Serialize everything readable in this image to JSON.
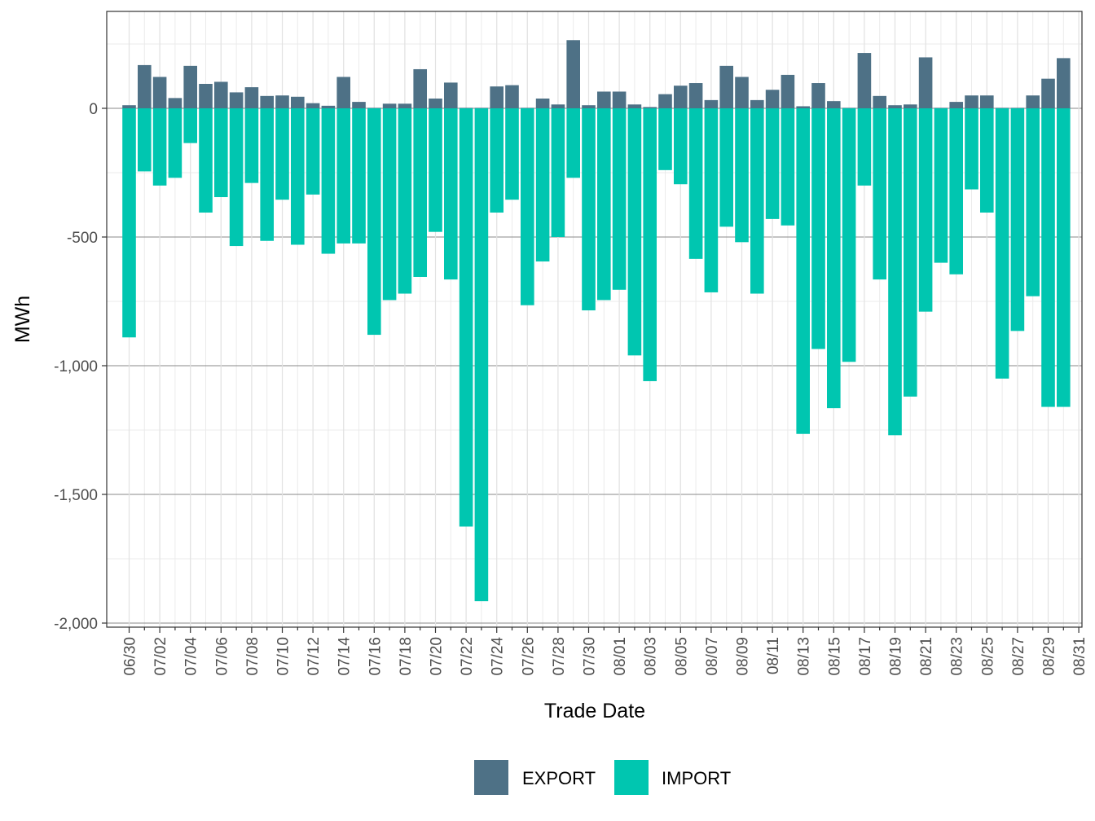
{
  "colors": {
    "export": "#4e7186",
    "import": "#00c6b0"
  },
  "chart_data": {
    "type": "bar",
    "stacked": "diverging",
    "xlabel": "Trade Date",
    "ylabel": "MWh",
    "ylim": [
      -2050,
      375
    ],
    "yticks": [
      0,
      -500,
      -1000,
      -1500,
      -2000
    ],
    "ytick_labels": [
      "0",
      "-500",
      "-1,000",
      "-1,500",
      "-2,000"
    ],
    "xtick_labels": [
      "06/30",
      "07/02",
      "07/04",
      "07/06",
      "07/08",
      "07/10",
      "07/12",
      "07/14",
      "07/16",
      "07/18",
      "07/20",
      "07/22",
      "07/24",
      "07/26",
      "07/28",
      "07/30",
      "08/01",
      "08/03",
      "08/05",
      "08/07",
      "08/09",
      "08/11",
      "08/13",
      "08/15",
      "08/17",
      "08/19",
      "08/21",
      "08/23",
      "08/25",
      "08/27",
      "08/29",
      "08/31"
    ],
    "categories": [
      "06/30",
      "07/01",
      "07/02",
      "07/03",
      "07/04",
      "07/05",
      "07/06",
      "07/07",
      "07/08",
      "07/09",
      "07/10",
      "07/11",
      "07/12",
      "07/13",
      "07/14",
      "07/15",
      "07/16",
      "07/17",
      "07/18",
      "07/19",
      "07/20",
      "07/21",
      "07/22",
      "07/23",
      "07/24",
      "07/25",
      "07/26",
      "07/27",
      "07/28",
      "07/29",
      "07/30",
      "07/31",
      "08/01",
      "08/02",
      "08/03",
      "08/04",
      "08/05",
      "08/06",
      "08/07",
      "08/08",
      "08/09",
      "08/10",
      "08/11",
      "08/12",
      "08/13",
      "08/14",
      "08/15",
      "08/16",
      "08/17",
      "08/18",
      "08/19",
      "08/20",
      "08/21",
      "08/22",
      "08/23",
      "08/24",
      "08/25",
      "08/26",
      "08/27",
      "08/28",
      "08/29",
      "08/30",
      "08/31"
    ],
    "series": [
      {
        "name": "EXPORT",
        "values": [
          12,
          168,
          122,
          40,
          165,
          95,
          103,
          62,
          82,
          48,
          50,
          45,
          20,
          10,
          122,
          25,
          2,
          18,
          18,
          152,
          38,
          100,
          2,
          2,
          85,
          90,
          2,
          38,
          15,
          265,
          12,
          65,
          65,
          15,
          5,
          55,
          88,
          98,
          32,
          165,
          122,
          32,
          72,
          130,
          8,
          98,
          28,
          2,
          215,
          48,
          12,
          15,
          198,
          2,
          25,
          50,
          50,
          2,
          2,
          50,
          115,
          195,
          0
        ]
      },
      {
        "name": "IMPORT",
        "values": [
          -890,
          -245,
          -300,
          -270,
          -135,
          -405,
          -345,
          -535,
          -290,
          -515,
          -355,
          -530,
          -335,
          -565,
          -525,
          -525,
          -880,
          -745,
          -720,
          -655,
          -480,
          -665,
          -1625,
          -1915,
          -405,
          -355,
          -765,
          -595,
          -500,
          -270,
          -785,
          -745,
          -705,
          -960,
          -1060,
          -240,
          -295,
          -585,
          -715,
          -460,
          -520,
          -720,
          -430,
          -455,
          -1265,
          -935,
          -1165,
          -985,
          -300,
          -665,
          -1270,
          -1120,
          -790,
          -600,
          -645,
          -315,
          -405,
          -1050,
          -865,
          -730,
          -1160,
          -1160,
          0
        ]
      }
    ],
    "legend": {
      "position": "bottom",
      "items": [
        "EXPORT",
        "IMPORT"
      ]
    }
  }
}
